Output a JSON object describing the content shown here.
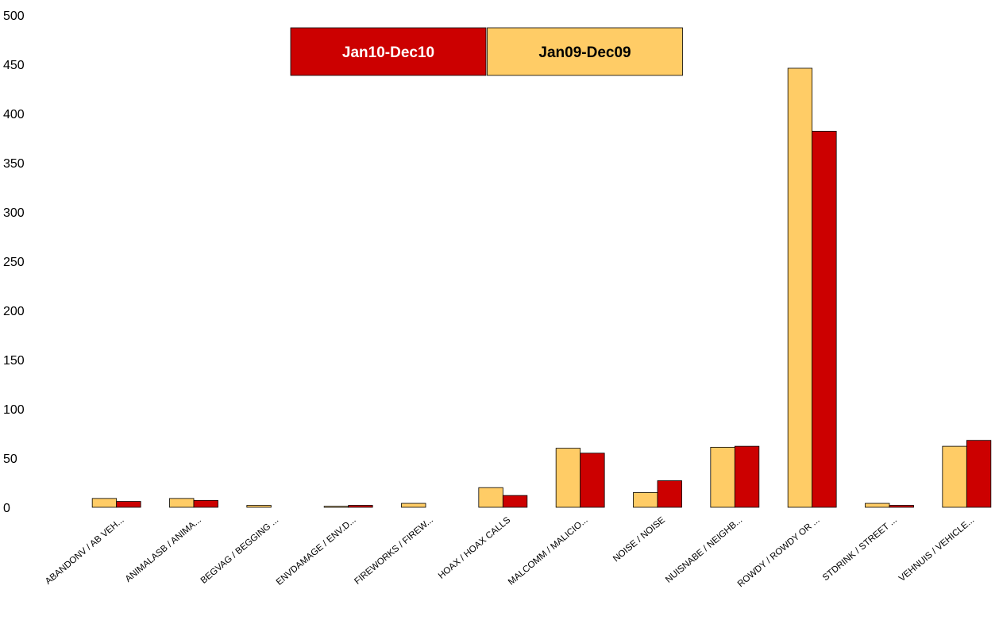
{
  "chart_data": {
    "type": "bar",
    "categories": [
      "ABANDONV / AB VEH...",
      "ANIMALASB / ANIMA...",
      "BEGVAG / BEGGING ...",
      "ENVDAMAGE / ENV.D...",
      "FIREWORKS / FIREW...",
      "HOAX / HOAX CALLS",
      "MALCOMM / MALICIO...",
      "NOISE / NOISE",
      "NUISNABE / NEIGHB...",
      "ROWDY / ROWDY OR ...",
      "STDRINK / STREET ...",
      "VEHNUIS / VEHICLE..."
    ],
    "series": [
      {
        "name": "Jan09-Dec09",
        "color": "#ffcc66",
        "values": [
          9,
          9,
          2,
          1,
          4,
          20,
          60,
          15,
          61,
          446,
          4,
          62
        ]
      },
      {
        "name": "Jan10-Dec10",
        "color": "#cc0000",
        "values": [
          6,
          7,
          0,
          2,
          0,
          12,
          55,
          27,
          62,
          382,
          2,
          68
        ]
      }
    ],
    "y_ticks": [
      "0",
      "50",
      "100",
      "150",
      "200",
      "250",
      "300",
      "350",
      "400",
      "450",
      "500"
    ],
    "ylim": [
      0,
      500
    ],
    "grid": false,
    "legend": {
      "position": "top-center",
      "entries": [
        {
          "label": "Jan10-Dec10",
          "background": "#cc0000",
          "text_color": "#ffffff"
        },
        {
          "label": "Jan09-Dec09",
          "background": "#ffcc66",
          "text_color": "#000000"
        }
      ]
    }
  }
}
